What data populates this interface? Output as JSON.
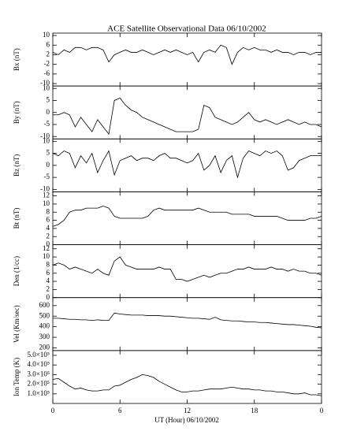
{
  "chart_data": {
    "type": "line",
    "title": "ACE Satellite Observational Data   06/10/2002",
    "xlabel": "UT (Hour)   06/10/2002",
    "xlim": [
      0,
      24
    ],
    "xticks": [
      0,
      6,
      12,
      18,
      {
        "value": 24,
        "label": "0"
      }
    ],
    "x": [
      0,
      0.5,
      1,
      1.5,
      2,
      2.5,
      3,
      3.5,
      4,
      4.5,
      5,
      5.5,
      6,
      6.5,
      7,
      7.5,
      8,
      8.5,
      9,
      9.5,
      10,
      10.5,
      11,
      11.5,
      12,
      12.5,
      13,
      13.5,
      14,
      14.5,
      15,
      15.5,
      16,
      16.5,
      17,
      17.5,
      18,
      18.5,
      19,
      19.5,
      20,
      20.5,
      21,
      21.5,
      22,
      22.5,
      23,
      23.5,
      24
    ],
    "panels": [
      {
        "ylabel": "Bx (nT)",
        "color": "#000000",
        "ylim": [
          -11,
          11
        ],
        "yticks": [
          -10,
          -6,
          -2,
          2,
          6,
          10
        ],
        "values": [
          3,
          2,
          4,
          3,
          5,
          5,
          4,
          5,
          5,
          4,
          -1,
          2,
          3,
          4,
          3,
          3,
          4,
          3,
          2,
          3,
          4,
          3,
          4,
          3,
          2,
          3,
          -1,
          3,
          4,
          3,
          6,
          5,
          -2,
          3,
          5,
          4,
          5,
          4,
          4,
          3,
          4,
          3,
          3,
          2,
          3,
          3,
          2,
          3,
          3
        ]
      },
      {
        "ylabel": "By (nT)",
        "color": "#000000",
        "ylim": [
          -11,
          11
        ],
        "yticks": [
          -10,
          -5,
          0,
          5,
          10
        ],
        "values": [
          -1,
          -1,
          0,
          -1,
          -6,
          -2,
          -5,
          -8,
          -3,
          -6,
          -9,
          5,
          6,
          3,
          1,
          0,
          -2,
          -3,
          -4,
          -5,
          -6,
          -7,
          -8,
          -8,
          -8,
          -8,
          -7,
          3,
          2,
          -2,
          -3,
          -4,
          -5,
          -4,
          -2,
          0,
          -3,
          -4,
          -3,
          -4,
          -5,
          -4,
          -3,
          -4,
          -5,
          -4,
          -5,
          -5,
          -6
        ]
      },
      {
        "ylabel": "Bz (nT)",
        "color": "#000000",
        "ylim": [
          -11,
          11
        ],
        "yticks": [
          -10,
          -5,
          0,
          5,
          10
        ],
        "values": [
          5,
          4,
          6,
          5,
          -1,
          4,
          1,
          5,
          -3,
          2,
          6,
          -4,
          2,
          3,
          4,
          2,
          3,
          3,
          2,
          4,
          5,
          3,
          3,
          2,
          1,
          2,
          5,
          -2,
          0,
          4,
          -3,
          2,
          4,
          -5,
          3,
          6,
          5,
          4,
          6,
          5,
          6,
          4,
          -2,
          -1,
          2,
          3,
          4,
          4,
          4
        ]
      },
      {
        "ylabel": "Bt (nT)",
        "color": "#000000",
        "ylim": [
          0,
          13
        ],
        "yticks": [
          0,
          2,
          4,
          6,
          8,
          10,
          12
        ],
        "values": [
          4.5,
          5,
          6,
          8,
          8.5,
          8.5,
          9,
          9,
          9,
          9.5,
          9,
          7,
          6.5,
          6.5,
          6.5,
          6.5,
          6.5,
          7,
          8.5,
          9,
          8.5,
          8.5,
          8.5,
          8.5,
          8.5,
          8.5,
          9,
          8.5,
          8,
          8,
          8,
          8,
          7.5,
          7.5,
          7.5,
          7.5,
          7,
          7,
          7,
          7,
          7,
          6.5,
          6,
          6,
          6,
          6,
          6.5,
          6.5,
          7
        ]
      },
      {
        "ylabel": "Den (1/cc)",
        "color": "#000000",
        "ylim": [
          0,
          13
        ],
        "yticks": [
          0,
          2,
          4,
          6,
          8,
          10,
          12
        ],
        "values": [
          8,
          8.5,
          8,
          7,
          7.5,
          7,
          6.5,
          6,
          7,
          6,
          5.5,
          9,
          10,
          8,
          7.5,
          7,
          7,
          7,
          7,
          7.5,
          7,
          7,
          4.5,
          4.5,
          4,
          4.5,
          5,
          5.5,
          5,
          5.5,
          6,
          6,
          6.5,
          7,
          7,
          7.5,
          7,
          7,
          7,
          7.5,
          7,
          7,
          6.5,
          7,
          6.5,
          6.5,
          6,
          6,
          5.5
        ]
      },
      {
        "ylabel": "Vel (Km/sec)",
        "color": "#000000",
        "ylim": [
          175,
          675
        ],
        "yticks": [
          200,
          300,
          400,
          500,
          600
        ],
        "values": [
          480,
          480,
          475,
          470,
          470,
          465,
          465,
          460,
          465,
          460,
          460,
          530,
          520,
          515,
          510,
          510,
          510,
          505,
          505,
          505,
          500,
          500,
          495,
          490,
          485,
          480,
          480,
          475,
          470,
          490,
          465,
          460,
          455,
          455,
          450,
          445,
          445,
          440,
          440,
          435,
          430,
          425,
          420,
          420,
          415,
          410,
          405,
          395,
          390
        ]
      },
      {
        "ylabel": "Ion Temp (K)",
        "color": "#000000",
        "ylim": [
          0,
          550000
        ],
        "yticks": [
          {
            "value": 100000,
            "label": "1.0×10⁵"
          },
          {
            "value": 200000,
            "label": "2.0×10⁵"
          },
          {
            "value": 300000,
            "label": "3.0×10⁵"
          },
          {
            "value": 400000,
            "label": "4.0×10⁵"
          },
          {
            "value": 500000,
            "label": "5.0×10⁵"
          }
        ],
        "values": [
          250000,
          260000,
          220000,
          180000,
          150000,
          160000,
          140000,
          130000,
          130000,
          140000,
          140000,
          180000,
          190000,
          220000,
          250000,
          270000,
          300000,
          290000,
          270000,
          230000,
          200000,
          170000,
          140000,
          120000,
          120000,
          130000,
          130000,
          140000,
          150000,
          150000,
          150000,
          160000,
          170000,
          160000,
          150000,
          150000,
          140000,
          140000,
          130000,
          130000,
          120000,
          120000,
          110000,
          100000,
          100000,
          110000,
          90000,
          90000,
          80000
        ]
      }
    ]
  }
}
